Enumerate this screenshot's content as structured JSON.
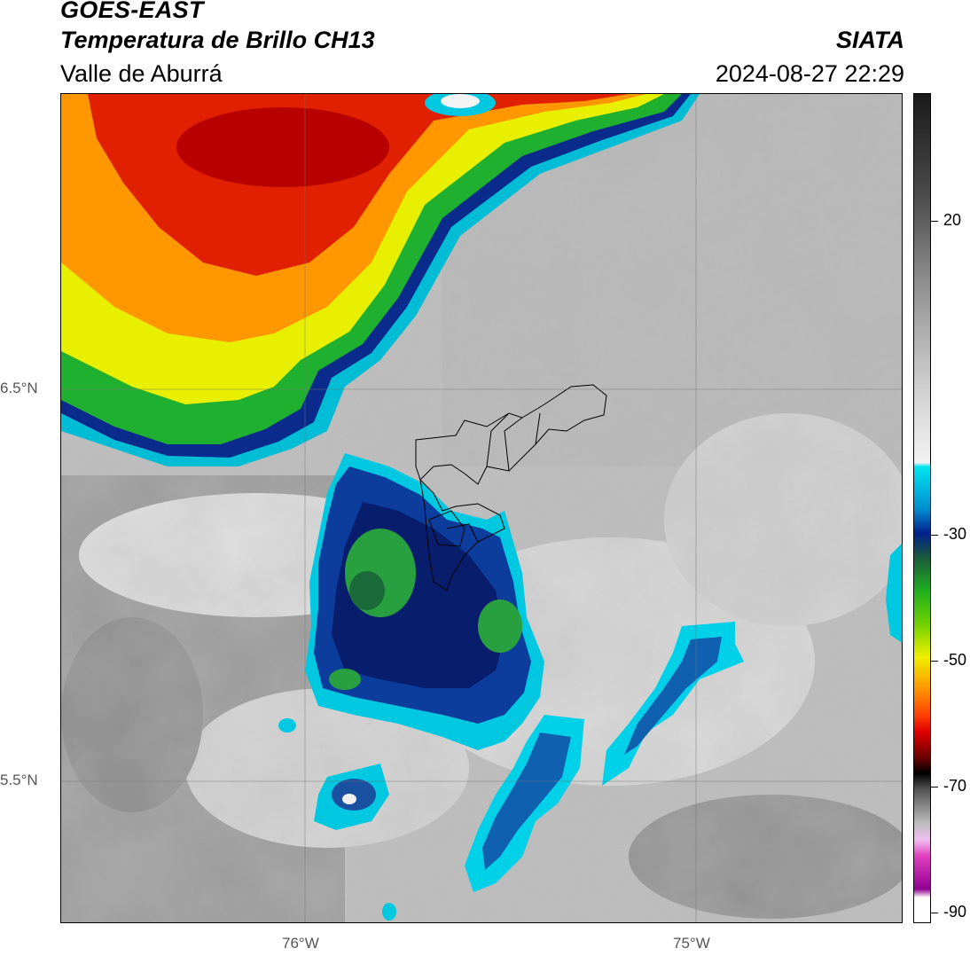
{
  "header": {
    "satellite": "GOES-EAST",
    "product": "Temperatura de Brillo CH13",
    "region": "Valle de Aburrá",
    "org": "SIATA",
    "timestamp": "2024-08-27 22:29"
  },
  "axes": {
    "lat_labels": [
      "6.5°N",
      "5.5°N"
    ],
    "lon_labels": [
      "76°W",
      "75°W"
    ]
  },
  "colorbar": {
    "tick_labels": [
      "20",
      "-30",
      "-50",
      "-70",
      "-90"
    ],
    "colors": {
      "gray_dark": "#2a2a2a",
      "gray_light": "#eeeeee",
      "cyan": "#00e5ee",
      "blue_dark": "#00208c",
      "green": "#20b020",
      "yellow": "#f0f000",
      "orange": "#ff9000",
      "red": "#e00000",
      "black": "#000000",
      "magenta": "#c020c0",
      "white": "#ffffff"
    }
  }
}
